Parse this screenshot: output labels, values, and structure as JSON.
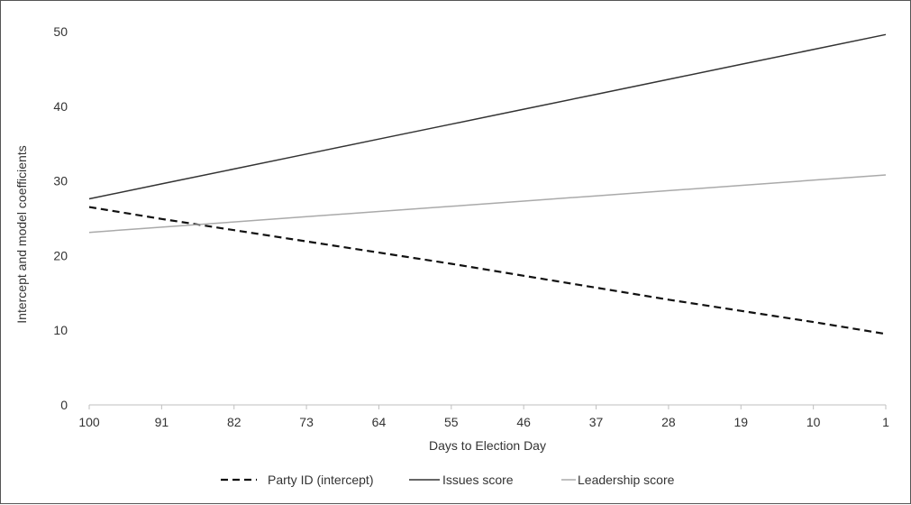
{
  "chart_data": {
    "type": "line",
    "title": "",
    "xlabel": "Days to Election Day",
    "ylabel": "Intercept and model coefficients",
    "x": [
      "100",
      "91",
      "82",
      "73",
      "64",
      "55",
      "46",
      "37",
      "28",
      "19",
      "10",
      "1"
    ],
    "x_values": [
      100,
      91,
      82,
      73,
      64,
      55,
      46,
      37,
      28,
      19,
      10,
      1
    ],
    "x_reversed": true,
    "xlim": [
      100,
      1
    ],
    "ylim": [
      0,
      50
    ],
    "yticks": [
      0,
      10,
      20,
      30,
      40,
      50
    ],
    "grid": false,
    "legend_position": "bottom",
    "series": [
      {
        "name": "Party ID (intercept)",
        "style": "dashed",
        "color": "#111111",
        "values": [
          26.5,
          24.9,
          23.4,
          21.9,
          20.4,
          18.9,
          17.3,
          15.7,
          14.1,
          12.6,
          11.1,
          9.5
        ]
      },
      {
        "name": "Issues score",
        "style": "solid",
        "color": "#333333",
        "values": [
          27.6,
          29.6,
          31.6,
          33.6,
          35.6,
          37.6,
          39.6,
          41.6,
          43.6,
          45.6,
          47.6,
          49.6
        ]
      },
      {
        "name": "Leadership score",
        "style": "solid",
        "color": "#aaaaaa",
        "values": [
          23.1,
          23.8,
          24.5,
          25.2,
          25.9,
          26.6,
          27.3,
          28.0,
          28.7,
          29.4,
          30.1,
          30.8
        ]
      }
    ]
  }
}
